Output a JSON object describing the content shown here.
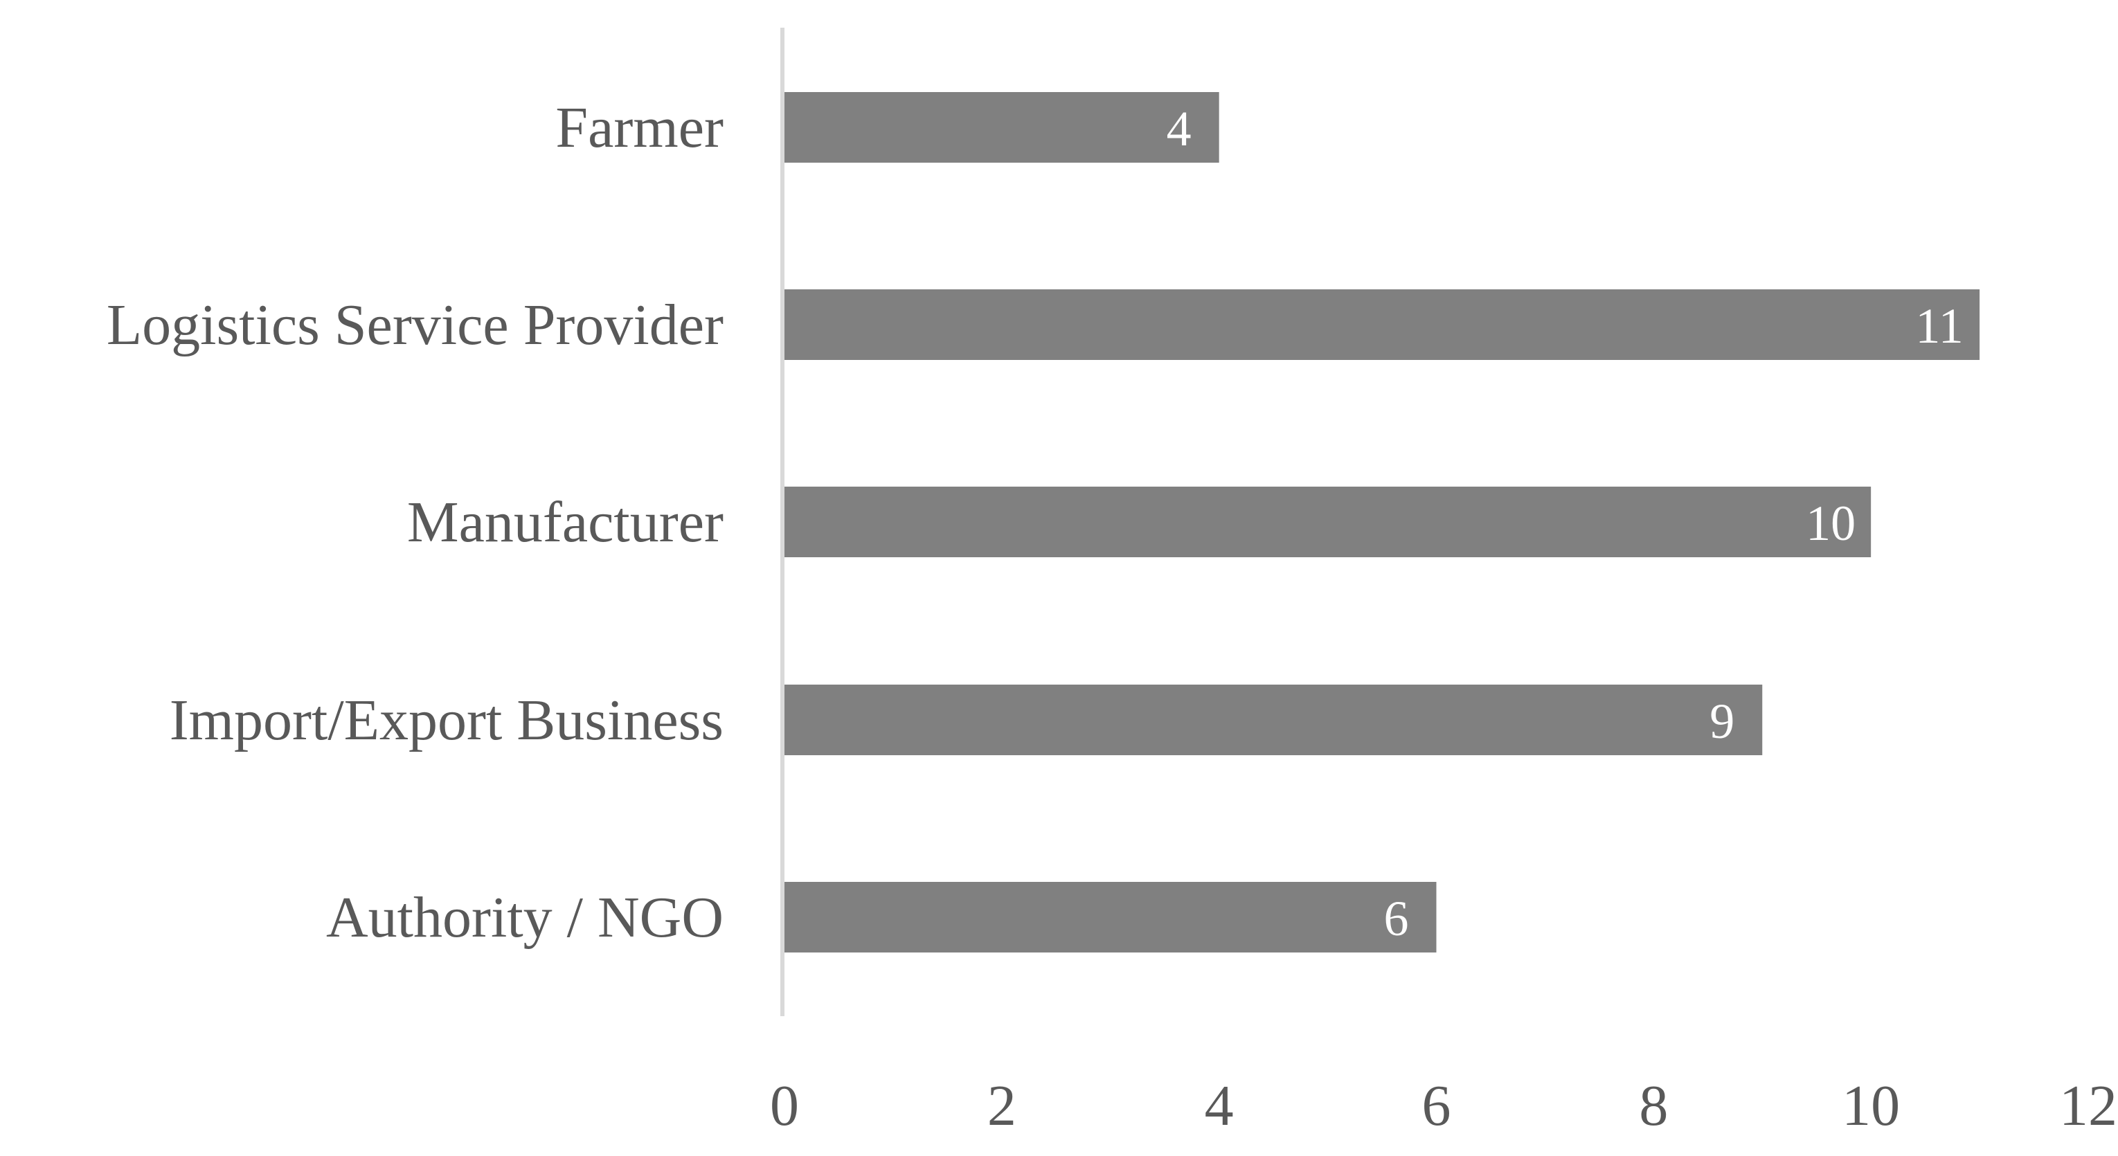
{
  "chart_data": {
    "type": "bar",
    "orientation": "horizontal",
    "categories": [
      "Farmer",
      "Logistics Service Provider",
      "Manufacturer",
      "Import/Export Business",
      "Authority / NGO"
    ],
    "values": [
      4,
      11,
      10,
      9,
      6
    ],
    "data_labels": [
      "4",
      "11",
      "10",
      "9",
      "6"
    ],
    "title": "",
    "xlabel": "",
    "ylabel": "",
    "xlim": [
      0,
      12
    ],
    "x_ticks": [
      0,
      2,
      4,
      6,
      8,
      10,
      12
    ],
    "x_tick_labels": [
      "0",
      "2",
      "4",
      "6",
      "8",
      "10",
      "12"
    ],
    "grid": false,
    "legend": "none",
    "colors": {
      "bar": "#808080",
      "axis_line": "#d9d9d9",
      "text": "#595959",
      "data_label": "#ffffff"
    }
  }
}
